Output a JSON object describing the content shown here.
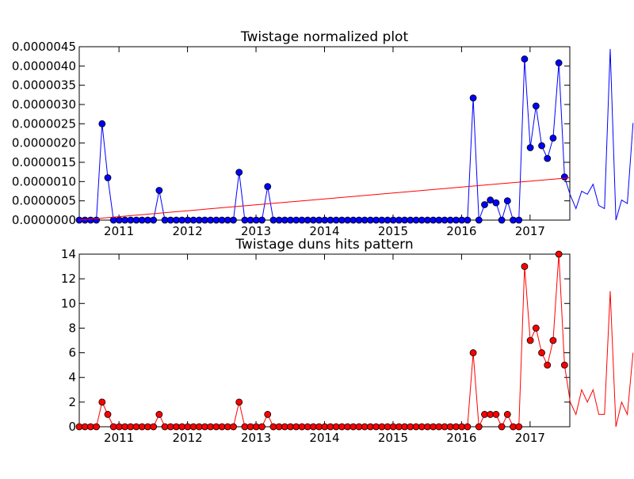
{
  "chart_data": [
    {
      "type": "line",
      "title": "Twistage normalized plot",
      "xlabel": "",
      "ylabel": "",
      "xlim": [
        2010.42,
        2017.58
      ],
      "ylim": [
        0,
        4.5e-06
      ],
      "x_step": 0.08333,
      "x_ticks": [
        "2011",
        "2012",
        "2013",
        "2014",
        "2015",
        "2016",
        "2017"
      ],
      "y_ticks": [
        "0.0000000",
        "0.0000005",
        "0.0000010",
        "0.0000015",
        "0.0000020",
        "0.0000025",
        "0.0000030",
        "0.0000035",
        "0.0000040",
        "0.0000045"
      ],
      "grid": false,
      "colors": {
        "series": "#0000ff",
        "trend": "#ff0000"
      },
      "series": [
        {
          "values": [
            0,
            0,
            0,
            0,
            2.5e-06,
            1.1e-06,
            0,
            0,
            0,
            0,
            0,
            0,
            0,
            0,
            7.7e-07,
            0,
            0,
            0,
            0,
            0,
            0,
            0,
            0,
            0,
            0,
            0,
            0,
            0,
            1.24e-06,
            0,
            0,
            0,
            0,
            8.7e-07,
            0,
            0,
            0,
            0,
            0,
            0,
            0,
            0,
            0,
            0,
            0,
            0,
            0,
            0,
            0,
            0,
            0,
            0,
            0,
            0,
            0,
            0,
            0,
            0,
            0,
            0,
            0,
            0,
            0,
            0,
            0,
            0,
            0,
            0,
            0,
            3.17e-06,
            0,
            4e-07,
            5.2e-07,
            4.5e-07,
            0,
            5e-07,
            0,
            0,
            4.18e-06,
            1.88e-06,
            2.96e-06,
            1.93e-06,
            1.6e-06,
            2.13e-06,
            4.08e-06,
            1.12e-06,
            6.5e-07,
            3e-07,
            7.5e-07,
            6.7e-07,
            9.3e-07,
            3.8e-07,
            3e-07,
            4.44e-06,
            0,
            5.2e-07,
            4.3e-07,
            2.52e-06
          ]
        },
        {
          "kind": "trend",
          "values": [
            0,
            1.1e-06
          ]
        }
      ]
    },
    {
      "type": "line",
      "title": "Twistage duns hits pattern",
      "xlabel": "",
      "ylabel": "",
      "xlim": [
        2010.42,
        2017.58
      ],
      "ylim": [
        0,
        14
      ],
      "x_step": 0.08333,
      "x_ticks": [
        "2011",
        "2012",
        "2013",
        "2014",
        "2015",
        "2016",
        "2017"
      ],
      "y_ticks": [
        "0",
        "2",
        "4",
        "6",
        "8",
        "10",
        "12",
        "14"
      ],
      "grid": false,
      "colors": {
        "series": "#ff0000",
        "marker": "#ff0000"
      },
      "series": [
        {
          "values": [
            0,
            0,
            0,
            0,
            2,
            1,
            0,
            0,
            0,
            0,
            0,
            0,
            0,
            0,
            1,
            0,
            0,
            0,
            0,
            0,
            0,
            0,
            0,
            0,
            0,
            0,
            0,
            0,
            2,
            0,
            0,
            0,
            0,
            1,
            0,
            0,
            0,
            0,
            0,
            0,
            0,
            0,
            0,
            0,
            0,
            0,
            0,
            0,
            0,
            0,
            0,
            0,
            0,
            0,
            0,
            0,
            0,
            0,
            0,
            0,
            0,
            0,
            0,
            0,
            0,
            0,
            0,
            0,
            0,
            6,
            0,
            1,
            1,
            1,
            0,
            1,
            0,
            0,
            13,
            7,
            8,
            6,
            5,
            7,
            14,
            5,
            2,
            1,
            3,
            2,
            3,
            1,
            1,
            11,
            0,
            2,
            1,
            6
          ]
        }
      ]
    }
  ]
}
